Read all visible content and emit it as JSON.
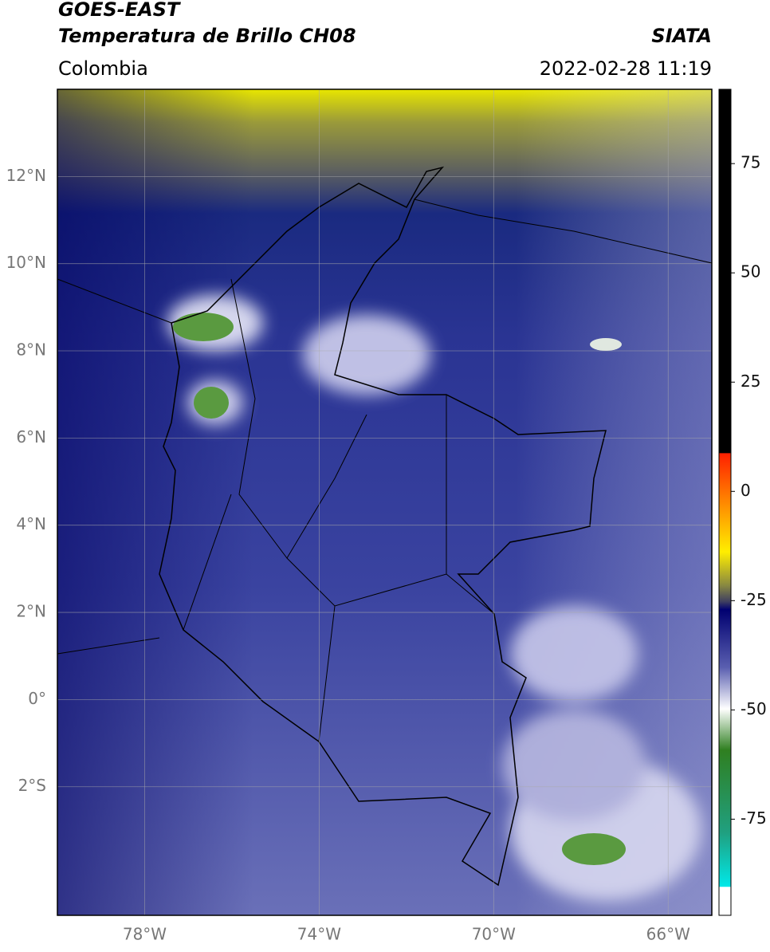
{
  "header": {
    "title_line1": "GOES-EAST",
    "title_line2": "Temperatura de Brillo CH08",
    "title_right": "SIATA",
    "region": "Colombia",
    "timestamp": "2022-02-28 11:19"
  },
  "map": {
    "lonlim": [
      -80,
      -65
    ],
    "latlim": [
      -4.95,
      14
    ],
    "lat_ticks": [
      {
        "value": 12,
        "label": "12°N"
      },
      {
        "value": 10,
        "label": "10°N"
      },
      {
        "value": 8,
        "label": "8°N"
      },
      {
        "value": 6,
        "label": "6°N"
      },
      {
        "value": 4,
        "label": "4°N"
      },
      {
        "value": 2,
        "label": "2°N"
      },
      {
        "value": 0,
        "label": "0°"
      },
      {
        "value": -2,
        "label": "2°S"
      }
    ],
    "lon_ticks": [
      {
        "value": -78,
        "label": "78°W"
      },
      {
        "value": -74,
        "label": "74°W"
      },
      {
        "value": -70,
        "label": "70°W"
      },
      {
        "value": -66,
        "label": "66°W"
      }
    ]
  },
  "colorbar": {
    "lim": [
      -97,
      92
    ],
    "ticks": [
      75,
      50,
      25,
      0,
      -25,
      -50,
      -75
    ]
  }
}
